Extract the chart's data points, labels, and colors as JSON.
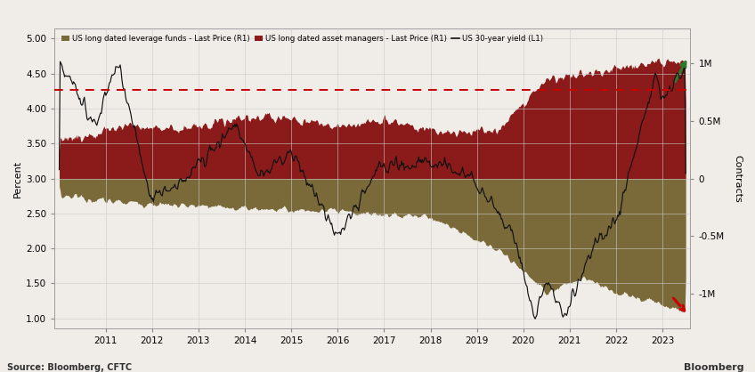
{
  "legend_items": [
    {
      "label": "US long dated leverage funds - Last Price (R1)",
      "color": "#7a6a3a"
    },
    {
      "label": "US long dated asset managers - Last Price (R1)",
      "color": "#8b1a1a"
    },
    {
      "label": "US 30-year yield (L1)",
      "color": "#111111"
    }
  ],
  "ylabel_left": "Percent",
  "ylabel_right": "Contracts",
  "ylim_left": [
    0.85,
    5.15
  ],
  "ylim_right": [
    -1.3,
    1.3
  ],
  "dashed_line_y": 4.27,
  "dashed_line_color": "#cc0000",
  "background_color": "#f0ede8",
  "source_text": "Source: Bloomberg, CFTC",
  "bloomberg_text": "Bloomberg",
  "x_start_year": 2009.9,
  "x_end_year": 2023.6,
  "right_yticks": [
    -1.0,
    -0.5,
    0.0,
    0.5,
    1.0
  ],
  "right_yticklabels": [
    "-1M",
    "-0.5M",
    "0",
    "0.5M",
    "1M"
  ],
  "left_yticks": [
    1.0,
    1.5,
    2.0,
    2.5,
    3.0,
    3.5,
    4.0,
    4.5,
    5.0
  ],
  "grid_color": "#cccccc",
  "lev_color": "#7a6a3a",
  "asset_color": "#8b1a1a"
}
